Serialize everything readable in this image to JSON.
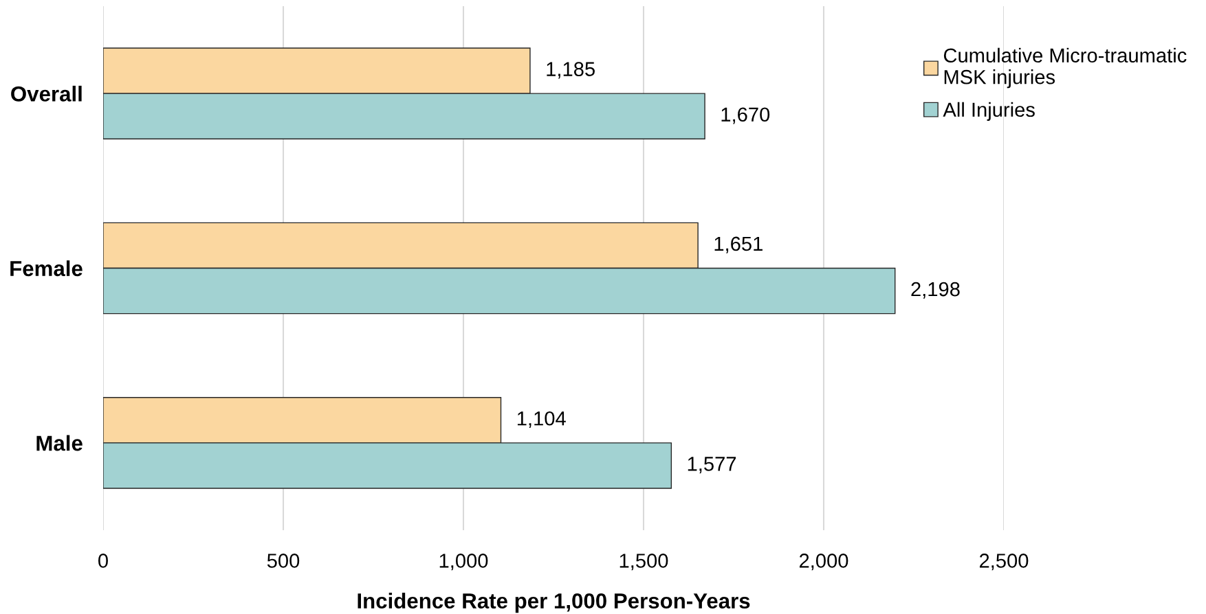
{
  "chart_data": {
    "type": "bar",
    "orientation": "horizontal",
    "categories": [
      "Overall",
      "Female",
      "Male"
    ],
    "series": [
      {
        "name": "Cumulative Micro-traumatic\nMSK injuries",
        "color": "#fbd7a0",
        "values": [
          1185,
          1651,
          1104
        ],
        "value_labels": [
          "1,185",
          "1,651",
          "1,104"
        ]
      },
      {
        "name": "All Injuries",
        "color": "#a2d2d2",
        "values": [
          1670,
          2198,
          1577
        ],
        "value_labels": [
          "1,670",
          "2,198",
          "1,577"
        ]
      }
    ],
    "xlabel": "Incidence Rate per 1,000 Person-Years",
    "xlim": [
      0,
      2500
    ],
    "xticks": [
      0,
      500,
      {
        "value": 1000,
        "label": "1,000"
      },
      {
        "value": 1500,
        "label": "1,500"
      },
      {
        "value": 2000,
        "label": "2,000"
      },
      {
        "value": 2500,
        "label": "2,500"
      }
    ],
    "grid": "x",
    "legend": "top right"
  }
}
